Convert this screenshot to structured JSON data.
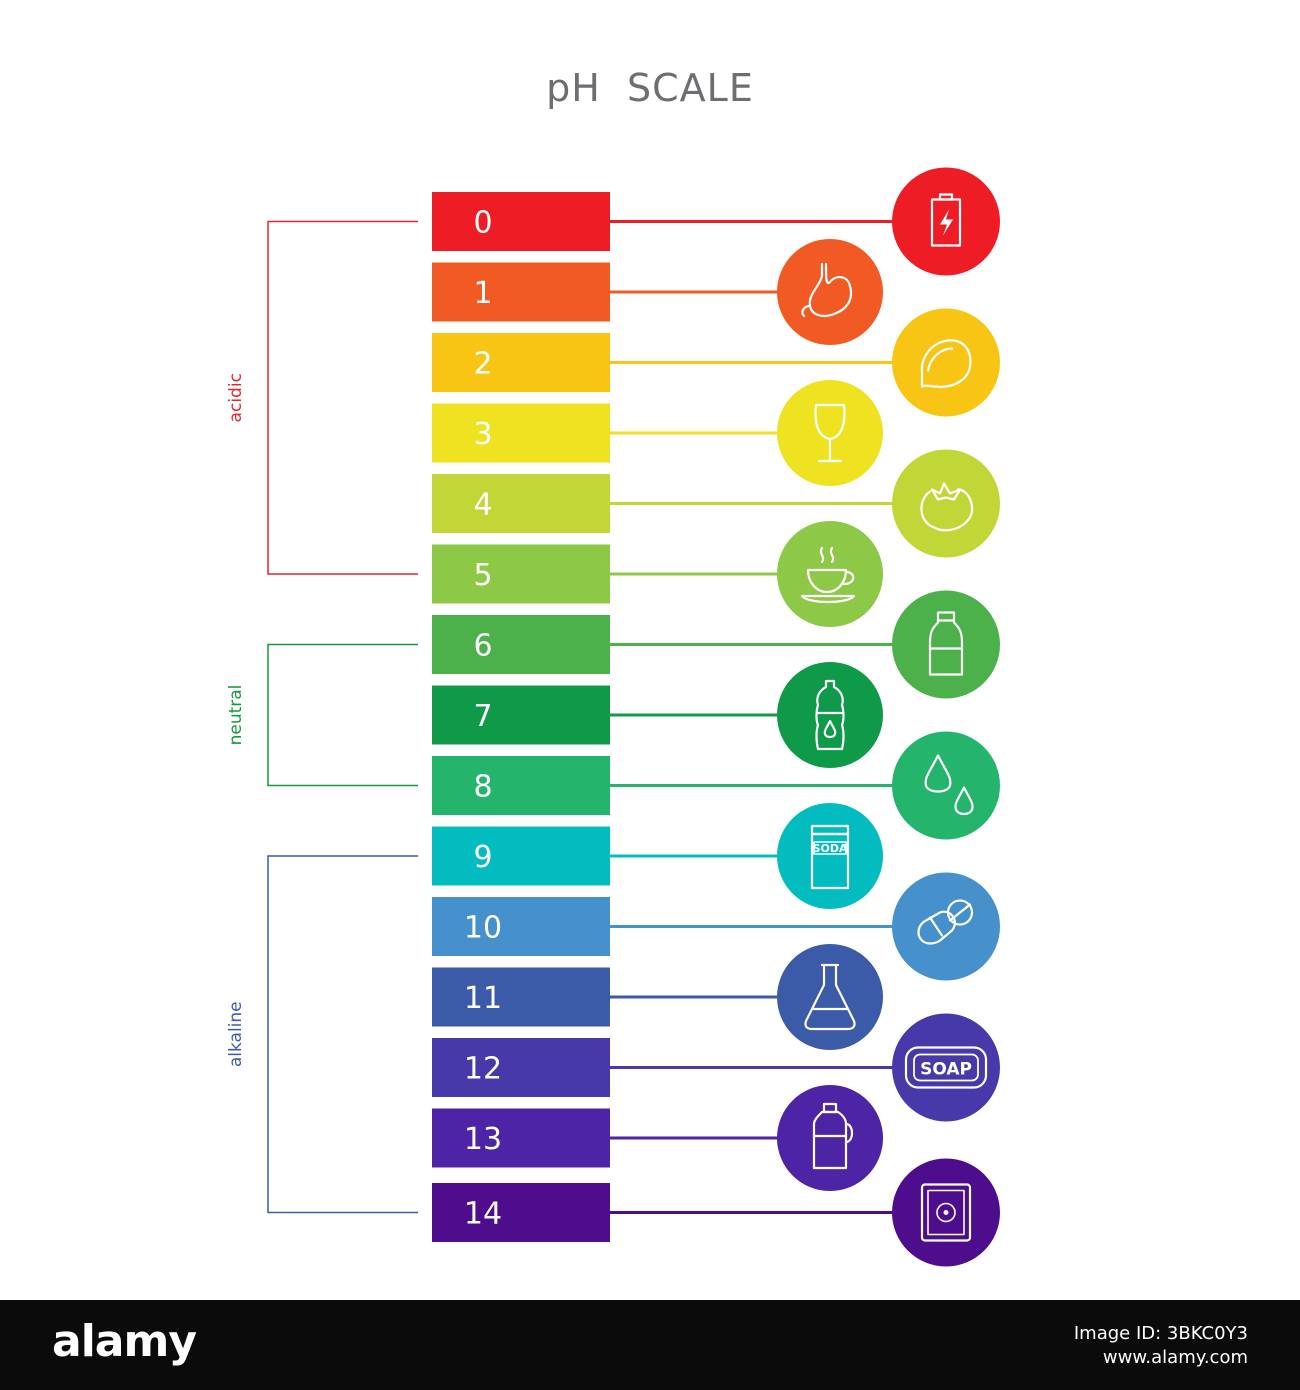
{
  "title": "pH  SCALE",
  "groups": [
    {
      "label": "acidic",
      "color": "#e3262d",
      "from": 0,
      "to": 5
    },
    {
      "label": "neutral",
      "color": "#16983a",
      "from": 6,
      "to": 8
    },
    {
      "label": "alkaline",
      "color": "#3c5ba8",
      "from": 9,
      "to": 14
    }
  ],
  "levels": [
    {
      "ph": "0",
      "color": "#ee1c25",
      "icon": "battery-icon",
      "icon_side": "right"
    },
    {
      "ph": "1",
      "color": "#f15a22",
      "icon": "stomach-icon",
      "icon_side": "left"
    },
    {
      "ph": "2",
      "color": "#f8c515",
      "icon": "lemon-icon",
      "icon_side": "right"
    },
    {
      "ph": "3",
      "color": "#efe221",
      "icon": "wine-glass-icon",
      "icon_side": "left"
    },
    {
      "ph": "4",
      "color": "#c1d738",
      "icon": "tomato-icon",
      "icon_side": "right"
    },
    {
      "ph": "5",
      "color": "#8dc847",
      "icon": "coffee-cup-icon",
      "icon_side": "left"
    },
    {
      "ph": "6",
      "color": "#4cb14b",
      "icon": "milk-bottle-icon",
      "icon_side": "right"
    },
    {
      "ph": "7",
      "color": "#0e9a48",
      "icon": "water-bottle-icon",
      "icon_side": "left"
    },
    {
      "ph": "8",
      "color": "#25b46c",
      "icon": "water-drops-icon",
      "icon_side": "right"
    },
    {
      "ph": "9",
      "color": "#03bcc0",
      "icon": "soda-box-icon",
      "icon_side": "left"
    },
    {
      "ph": "10",
      "color": "#4690cc",
      "icon": "pills-icon",
      "icon_side": "right"
    },
    {
      "ph": "11",
      "color": "#3b5aa8",
      "icon": "flask-icon",
      "icon_side": "left"
    },
    {
      "ph": "12",
      "color": "#4739a9",
      "icon": "soap-icon",
      "icon_side": "right"
    },
    {
      "ph": "13",
      "color": "#4d24a5",
      "icon": "detergent-icon",
      "icon_side": "left"
    },
    {
      "ph": "14",
      "color": "#4e0d8c",
      "icon": "drain-cleaner-icon",
      "icon_side": "right"
    }
  ],
  "icon_text": {
    "soda": "SODA",
    "soap": "SOAP"
  },
  "footer": {
    "logo": "alamy",
    "image_id": "Image ID: 3BKC0Y3",
    "url": "www.alamy.com"
  }
}
